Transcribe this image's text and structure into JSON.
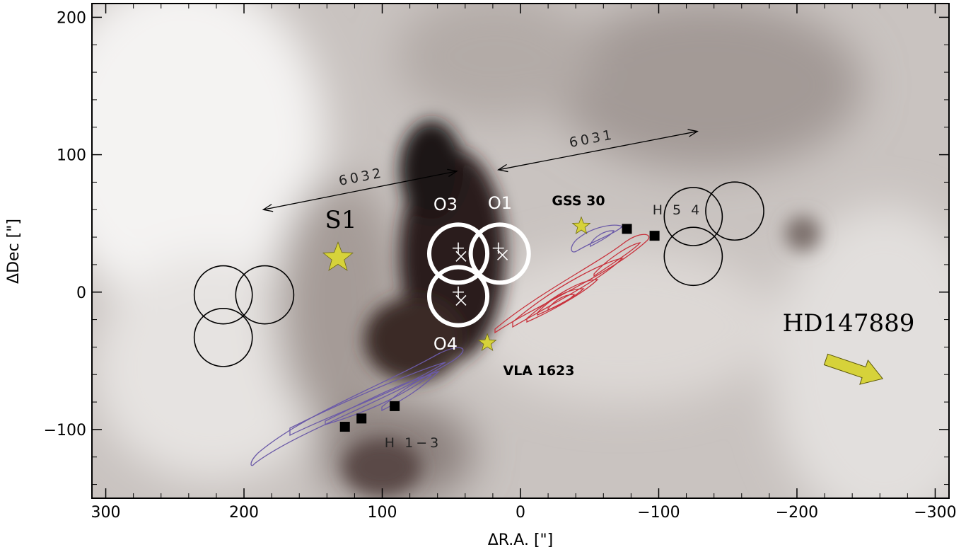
{
  "chart_data": {
    "type": "scatter",
    "xlabel": "ΔR.A. [\"]",
    "ylabel": "ΔDec [\"]",
    "xlim": [
      310,
      -310
    ],
    "ylim": [
      -150,
      210
    ],
    "x_ticks": [
      300,
      200,
      100,
      0,
      -100,
      -200,
      -300
    ],
    "x_tick_labels": [
      "300",
      "200",
      "100",
      "0",
      "−100",
      "−200",
      "−300"
    ],
    "y_ticks": [
      200,
      100,
      0,
      -100
    ],
    "y_tick_labels": [
      "200",
      "100",
      "0",
      "−100"
    ],
    "background": "grayscale emission map, dark band through center",
    "colors": {
      "star": "#d6d23a",
      "red_contours": "#c8323c",
      "blue_contours": "#6b5aa8",
      "arrow": "#d6d23a"
    },
    "stars": [
      {
        "label": "S1",
        "x": 132,
        "y": 25,
        "size": "large"
      },
      {
        "label": "GSS 30",
        "x": -44,
        "y": 48,
        "size": "small"
      },
      {
        "label": "VLA 1623",
        "x": 24,
        "y": -37,
        "size": "small"
      }
    ],
    "black_squares": [
      {
        "x": 127,
        "y": -98
      },
      {
        "x": 115,
        "y": -92
      },
      {
        "x": 91,
        "y": -83
      },
      {
        "x": -77,
        "y": 46
      },
      {
        "x": -97,
        "y": 41
      }
    ],
    "beam_circles_white": [
      {
        "label": "O3",
        "x": 45,
        "y": 28,
        "r": 21
      },
      {
        "label": "O1",
        "x": 15,
        "y": 28,
        "r": 21
      },
      {
        "label": "O4",
        "x": 45,
        "y": -3,
        "r": 21
      }
    ],
    "beam_circles_black": [
      {
        "x": 215,
        "y": -2,
        "r": 21
      },
      {
        "x": 185,
        "y": -2,
        "r": 21
      },
      {
        "x": 215,
        "y": -33,
        "r": 21
      },
      {
        "x": -125,
        "y": 55,
        "r": 21
      },
      {
        "x": -155,
        "y": 59,
        "r": 21
      },
      {
        "x": -125,
        "y": 26,
        "r": 21
      }
    ],
    "plus_markers": [
      {
        "x": 45,
        "y": 32
      },
      {
        "x": 16,
        "y": 32
      },
      {
        "x": 45,
        "y": 0
      }
    ],
    "x_markers": [
      {
        "x": 43,
        "y": 26
      },
      {
        "x": 13,
        "y": 27
      },
      {
        "x": 43,
        "y": -6
      }
    ],
    "double_arrows": [
      {
        "label": "6032",
        "from": [
          186,
          60
        ],
        "to": [
          46,
          88
        ]
      },
      {
        "label": "6031",
        "from": [
          16,
          89
        ],
        "to": [
          -128,
          117
        ]
      }
    ],
    "annotations": [
      {
        "text": "O3",
        "x": 64,
        "y": 63
      },
      {
        "text": "O1",
        "x": 17,
        "y": 64
      },
      {
        "text": "O4",
        "x": 62,
        "y": -40
      },
      {
        "text": "GSS 30",
        "x": -27,
        "y": 65
      },
      {
        "text": "VLA 1623",
        "x": 21,
        "y": -58
      },
      {
        "text": "H 5 4",
        "x": -90,
        "y": 55
      },
      {
        "text": "H 1−3",
        "x": 100,
        "y": -112
      },
      {
        "text": "S1",
        "x": 130,
        "y": 48
      },
      {
        "text": "HD147889",
        "x": -183,
        "y": -23
      }
    ],
    "direction_arrow": {
      "from": [
        -221,
        -49
      ],
      "to": [
        -262,
        -63
      ]
    }
  }
}
